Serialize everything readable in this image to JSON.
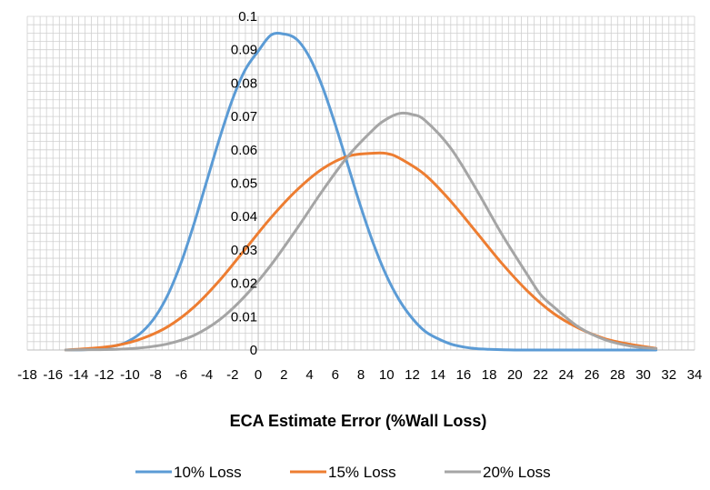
{
  "chart_data": {
    "type": "line",
    "title": "",
    "xlabel": "ECA Estimate Error (%Wall Loss)",
    "ylabel": "",
    "xlim": [
      -18,
      34
    ],
    "ylim": [
      0,
      0.1
    ],
    "x_ticks": [
      -18,
      -16,
      -14,
      -12,
      -10,
      -8,
      -6,
      -4,
      -2,
      0,
      2,
      4,
      6,
      8,
      10,
      12,
      14,
      16,
      18,
      20,
      22,
      24,
      26,
      28,
      30,
      32,
      34
    ],
    "x_tick_labels": [
      "-18",
      "-16",
      "-14",
      "-12",
      "-10",
      "-8",
      "-6",
      "-4",
      "-2",
      "0",
      "2",
      "4",
      "6",
      "8",
      "10",
      "12",
      "14",
      "16",
      "18",
      "20",
      "22",
      "24",
      "26",
      "28",
      "30",
      "32",
      "34"
    ],
    "y_ticks": [
      0,
      0.01,
      0.02,
      0.03,
      0.04,
      0.05,
      0.06,
      0.07,
      0.08,
      0.09,
      0.1
    ],
    "y_tick_labels": [
      "0",
      "0.01",
      "0.02",
      "0.03",
      "0.04",
      "0.05",
      "0.06",
      "0.07",
      "0.08",
      "0.09",
      "0.1"
    ],
    "grid": true,
    "legend_position": "bottom",
    "series": [
      {
        "name": "10% Loss",
        "color": "#5B9BD5",
        "x": [
          -15,
          -13,
          -11,
          -10,
          -9,
          -8,
          -7,
          -6,
          -5,
          -4,
          -3,
          -2,
          -1,
          0,
          1,
          2,
          3,
          4,
          5,
          6,
          7,
          8,
          9,
          10,
          11,
          12,
          13,
          14,
          15,
          16,
          17,
          18,
          20,
          22,
          24,
          26,
          28,
          31
        ],
        "y": [
          0.0,
          0.0002,
          0.0014,
          0.0029,
          0.0056,
          0.0101,
          0.0169,
          0.0263,
          0.0379,
          0.0508,
          0.0636,
          0.0752,
          0.0841,
          0.0896,
          0.0944,
          0.0947,
          0.0931,
          0.0877,
          0.0789,
          0.0676,
          0.0552,
          0.0428,
          0.0316,
          0.0222,
          0.0149,
          0.0095,
          0.0056,
          0.0034,
          0.0018,
          0.0009,
          0.0004,
          0.0002,
          0.0,
          0.0,
          0.0,
          0.0,
          0.0,
          0.0
        ]
      },
      {
        "name": "15% Loss",
        "color": "#ED7D31",
        "x": [
          -15,
          -13,
          -11,
          -9,
          -7,
          -5,
          -3,
          -1,
          1,
          3,
          5,
          7,
          9,
          10,
          11,
          13,
          15,
          17,
          19,
          21,
          23,
          25,
          27,
          29,
          31
        ],
        "y": [
          0.0,
          0.0005,
          0.0014,
          0.0035,
          0.0071,
          0.0129,
          0.0209,
          0.0303,
          0.0397,
          0.0479,
          0.0543,
          0.0581,
          0.059,
          0.0589,
          0.0575,
          0.0525,
          0.0446,
          0.0353,
          0.0259,
          0.0176,
          0.011,
          0.0065,
          0.0034,
          0.0017,
          0.0005
        ]
      },
      {
        "name": "20% Loss",
        "color": "#A5A5A5",
        "x": [
          -15,
          -13,
          -11,
          -9,
          -7,
          -5,
          -3,
          -1,
          1,
          3,
          5,
          7,
          9,
          10,
          11,
          12,
          13,
          15,
          17,
          19,
          21,
          22,
          23,
          25,
          27,
          29,
          31
        ],
        "y": [
          0.0,
          0.0001,
          0.0002,
          0.0007,
          0.0019,
          0.0044,
          0.0091,
          0.0163,
          0.0255,
          0.0363,
          0.0477,
          0.0581,
          0.0662,
          0.0692,
          0.0709,
          0.0706,
          0.0688,
          0.0605,
          0.0481,
          0.0346,
          0.0224,
          0.0166,
          0.013,
          0.0068,
          0.0031,
          0.0012,
          0.0004
        ]
      }
    ]
  }
}
